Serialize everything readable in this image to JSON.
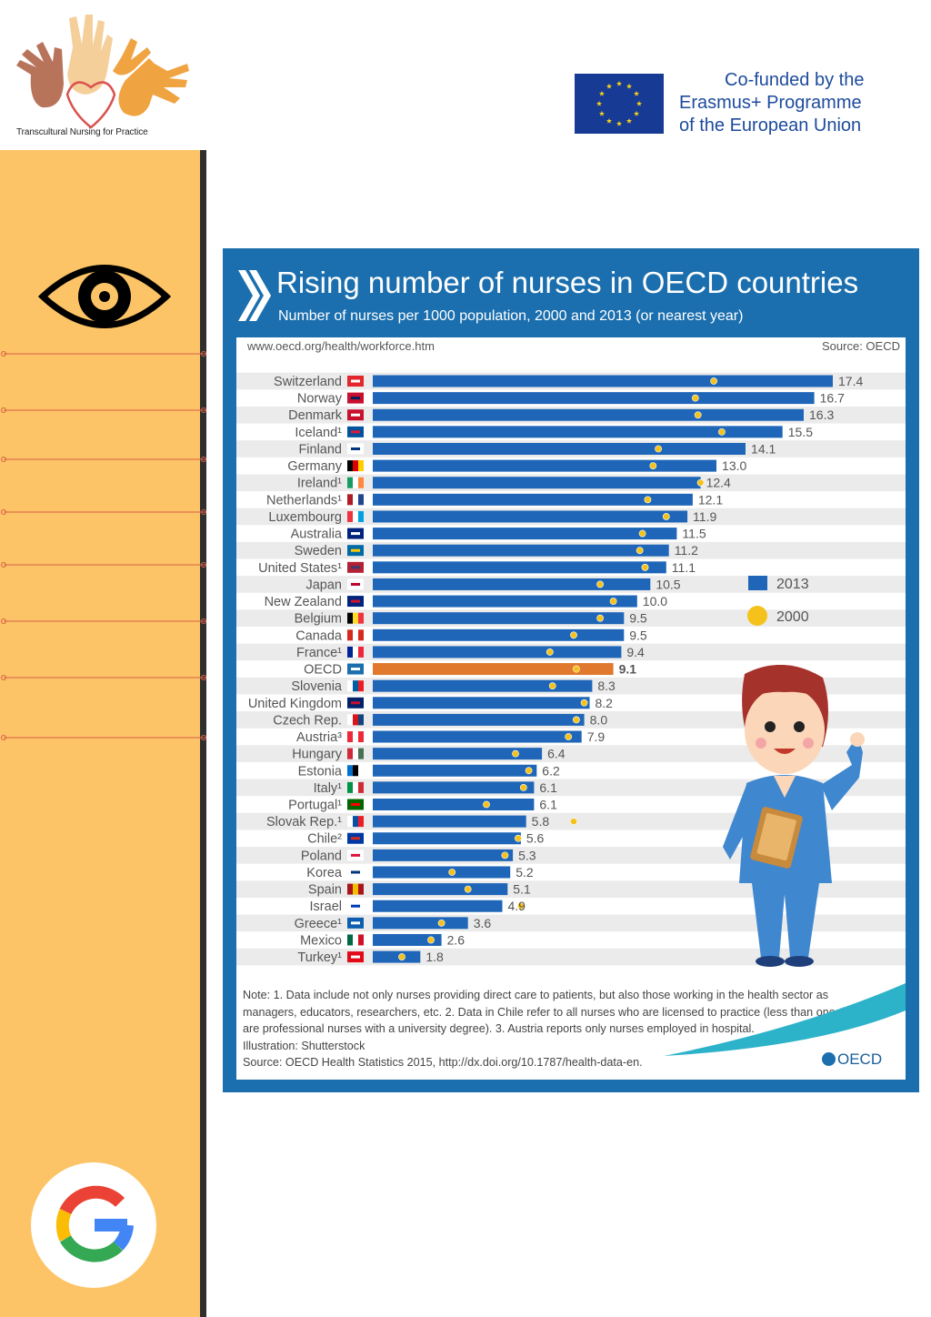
{
  "header": {
    "logo_caption": "Transcultural Nursing for Practice",
    "cofunded_lines": [
      "Co-funded by the",
      "Erasmus+ Programme",
      "of the European Union"
    ]
  },
  "sidebar": {
    "background": "#fcc466",
    "top_icon": "eye-icon",
    "bottom_icon": "google-icon"
  },
  "infographic": {
    "url": "www.oecd.org/health/workforce.htm",
    "source_top": "Source: OECD",
    "notes": [
      "Note: 1. Data include not only nurses providing direct care to patients, but also those working in the health sector as",
      "managers, educators, researchers, etc. 2. Data in Chile refer to all nurses who are licensed to practice (less than one-third",
      "are professional nurses with a university degree). 3. Austria reports only nurses employed in hospital.",
      "Illustration: Shutterstock",
      "Source: OECD Health Statistics 2015, http://dx.doi.org/10.1787/health-data-en."
    ],
    "footer_logo": "OECD"
  },
  "chart_data": {
    "type": "bar",
    "orientation": "horizontal",
    "title": "Rising number of nurses in OECD countries",
    "subtitle": "Number of nurses per 1000 population, 2000 and 2013 (or nearest year)",
    "categories": [
      "Switzerland",
      "Norway",
      "Denmark",
      "Iceland¹",
      "Finland",
      "Germany",
      "Ireland¹",
      "Netherlands¹",
      "Luxembourg",
      "Australia",
      "Sweden",
      "United States¹",
      "Japan",
      "New Zealand",
      "Belgium",
      "Canada",
      "France¹",
      "OECD",
      "Slovenia",
      "United Kingdom",
      "Czech Rep.",
      "Austria³",
      "Hungary",
      "Estonia",
      "Italy¹",
      "Portugal¹",
      "Slovak Rep.¹",
      "Chile²",
      "Poland",
      "Korea",
      "Spain",
      "Israel",
      "Greece¹",
      "Mexico",
      "Turkey¹"
    ],
    "series": [
      {
        "name": "2013",
        "color": "#1f66b8",
        "values": [
          17.4,
          16.7,
          16.3,
          15.5,
          14.1,
          13.0,
          12.4,
          12.1,
          11.9,
          11.5,
          11.2,
          11.1,
          10.5,
          10.0,
          9.5,
          9.5,
          9.4,
          9.1,
          8.3,
          8.2,
          8.0,
          7.9,
          6.4,
          6.2,
          6.1,
          6.1,
          5.8,
          5.6,
          5.3,
          5.2,
          5.1,
          4.9,
          3.6,
          2.6,
          1.8
        ]
      },
      {
        "name": "2000",
        "color": "#f4c21a",
        "values": [
          12.9,
          12.2,
          12.3,
          13.2,
          10.8,
          10.6,
          12.4,
          10.4,
          11.1,
          10.2,
          10.1,
          10.3,
          8.6,
          9.1,
          8.6,
          7.6,
          6.7,
          7.7,
          6.8,
          8.0,
          7.7,
          7.4,
          5.4,
          5.9,
          5.7,
          4.3,
          7.6,
          5.5,
          5.0,
          3.0,
          3.6,
          5.6,
          2.6,
          2.2,
          1.1
        ]
      }
    ],
    "highlight_category": "OECD",
    "highlight_color": "#e0792d",
    "xlim": [
      0,
      17.4
    ],
    "legend": {
      "position": "right",
      "items": [
        "2013",
        "2000"
      ]
    }
  }
}
